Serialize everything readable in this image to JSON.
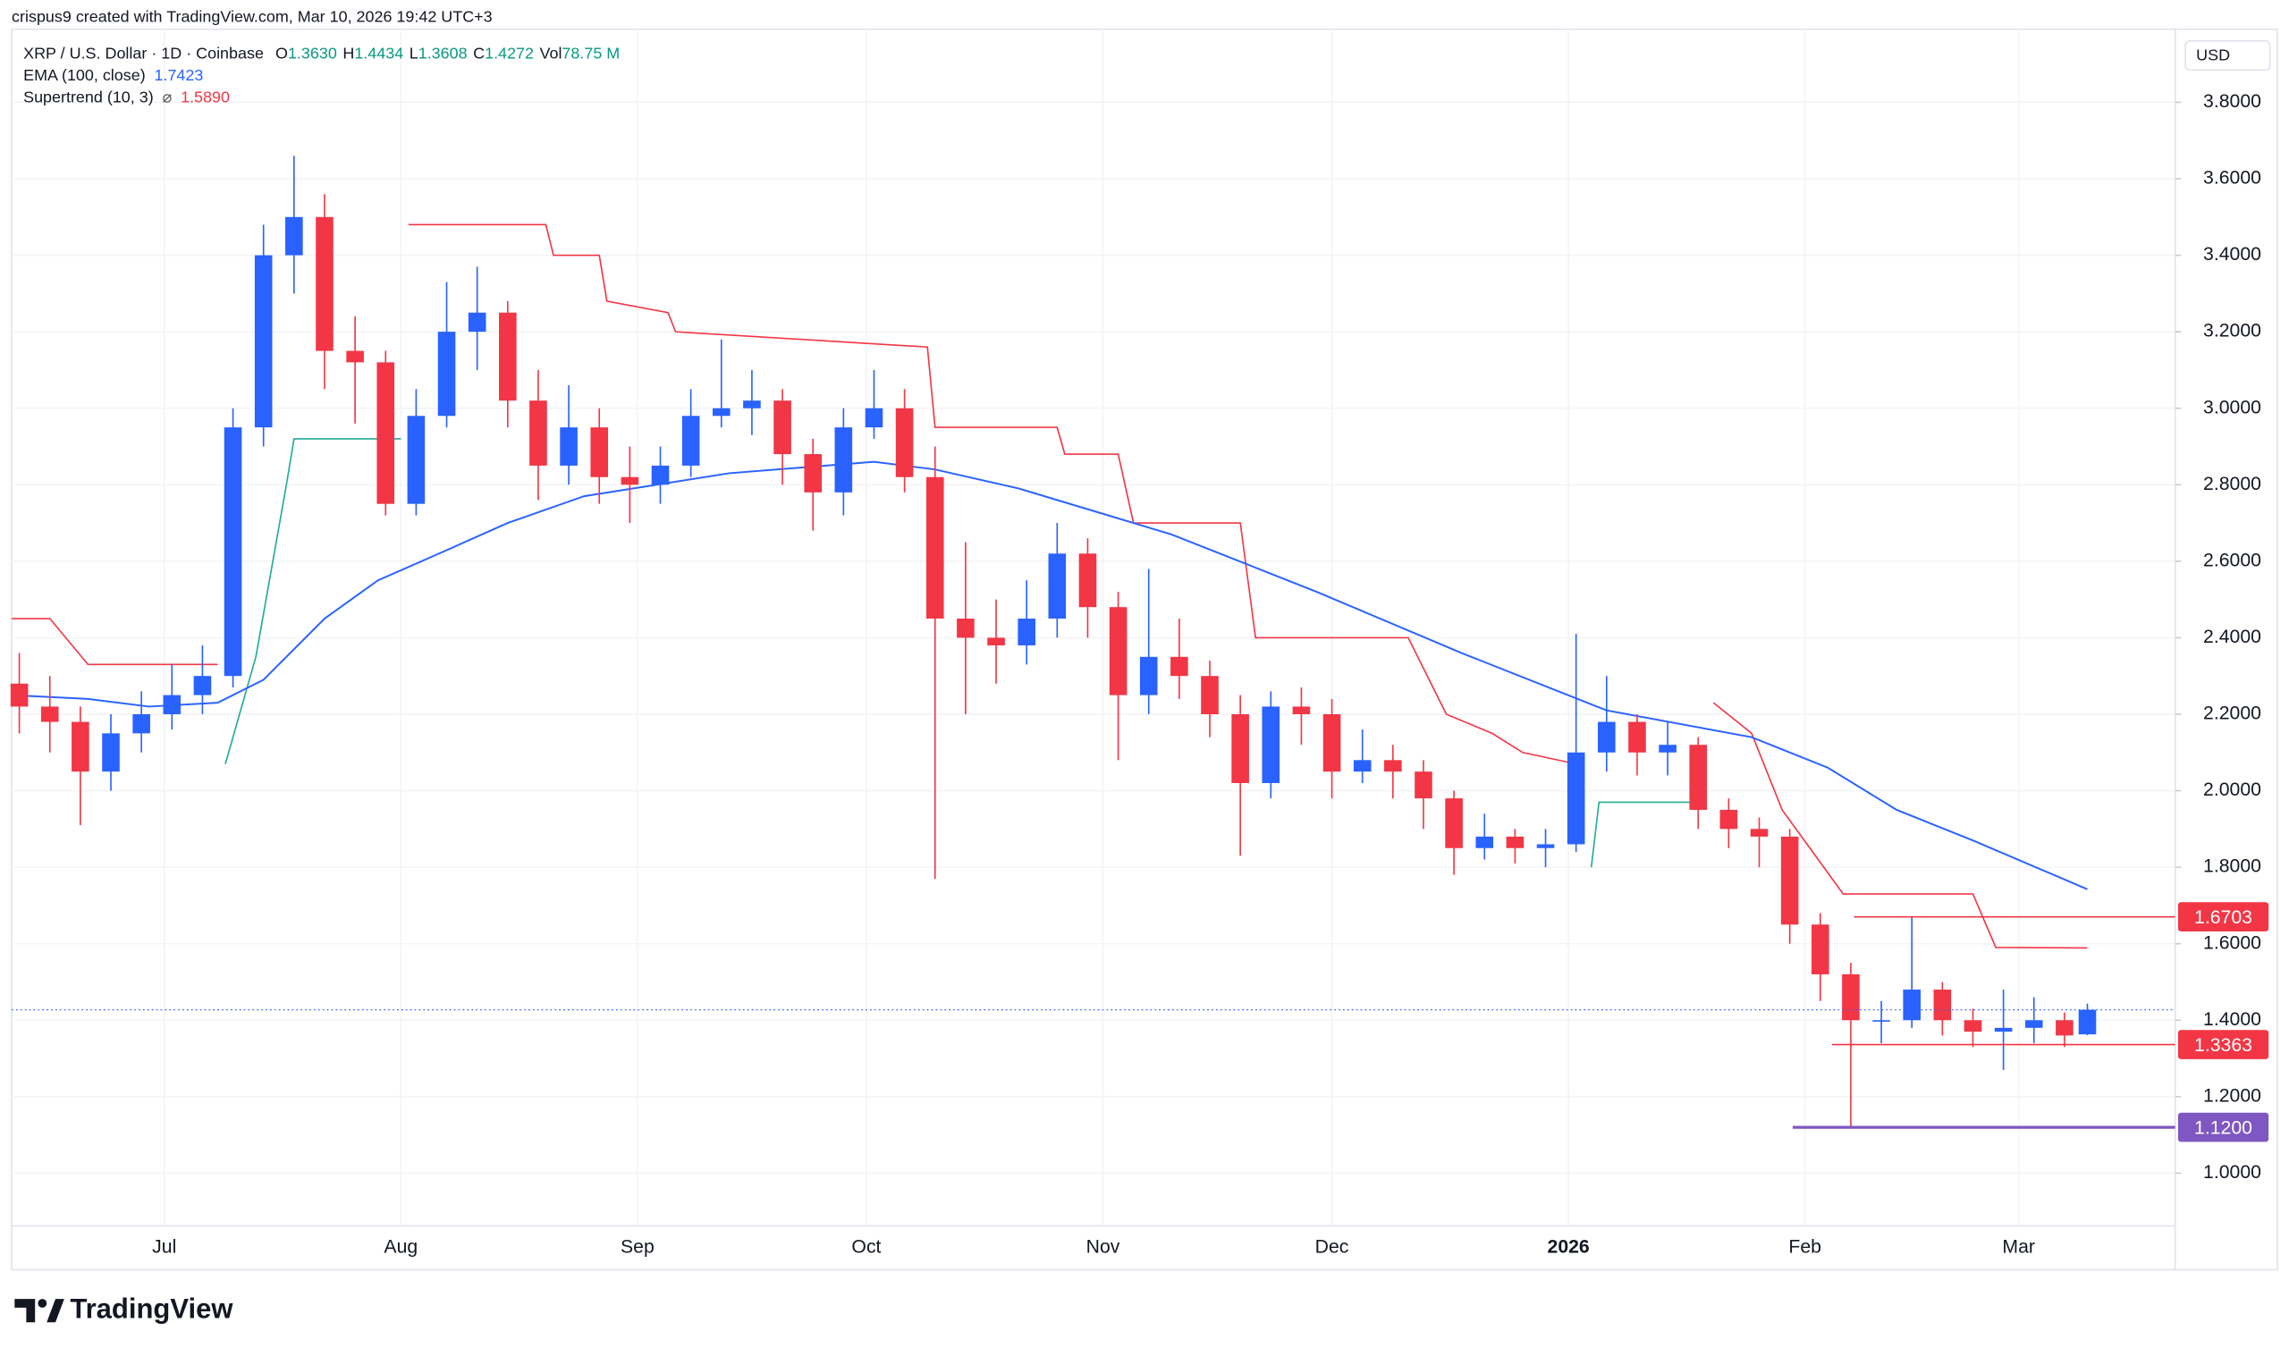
{
  "header": {
    "attribution": "crispus9 created with TradingView.com, Mar 10, 2026 19:42 UTC+3"
  },
  "chart_data": {
    "type": "candlestick",
    "title": "XRP / U.S. Dollar · 1D · Coinbase",
    "currency": "USD",
    "legend": {
      "ohlc": [
        {
          "key": "O",
          "value": 1.363,
          "label": "1.3630"
        },
        {
          "key": "H",
          "value": 1.4434,
          "label": "1.4434"
        },
        {
          "key": "L",
          "value": 1.3608,
          "label": "1.3608"
        },
        {
          "key": "C",
          "value": 1.4272,
          "label": "1.4272"
        }
      ],
      "volume": {
        "key": "Vol",
        "value": 78.75,
        "label": "78.75 M"
      }
    },
    "up_color": "#2962ff",
    "down_color": "#f23645",
    "x": [
      1,
      5,
      9,
      13,
      17,
      21,
      25,
      29,
      33,
      37,
      41,
      45,
      49,
      53,
      57,
      61,
      65,
      69,
      73,
      77,
      81,
      85,
      89,
      93,
      97,
      101,
      105,
      109,
      113,
      117,
      121,
      125,
      129,
      133,
      137,
      141,
      145,
      149,
      153,
      157,
      161,
      165,
      169,
      173,
      177,
      181,
      185,
      189,
      193,
      197,
      201,
      205,
      209,
      213,
      217,
      221,
      225,
      229,
      233,
      237,
      241,
      245,
      249,
      253,
      257,
      261,
      265,
      269,
      272
    ],
    "open": [
      2.28,
      2.22,
      2.18,
      2.05,
      2.15,
      2.2,
      2.25,
      2.3,
      2.95,
      3.4,
      3.5,
      3.15,
      3.12,
      2.75,
      2.98,
      3.2,
      3.25,
      3.02,
      2.85,
      2.95,
      2.82,
      2.8,
      2.85,
      2.98,
      3.0,
      3.02,
      2.88,
      2.78,
      2.95,
      3.0,
      2.82,
      2.45,
      2.4,
      2.38,
      2.45,
      2.62,
      2.48,
      2.25,
      2.35,
      2.3,
      2.2,
      2.02,
      2.22,
      2.2,
      2.05,
      2.08,
      2.05,
      1.98,
      1.85,
      1.88,
      1.85,
      1.86,
      2.1,
      2.18,
      2.1,
      2.12,
      1.95,
      1.9,
      1.88,
      1.65,
      1.52,
      1.4,
      1.4,
      1.48,
      1.4,
      1.37,
      1.38,
      1.4,
      1.363
    ],
    "high": [
      2.36,
      2.3,
      2.22,
      2.2,
      2.26,
      2.33,
      2.38,
      3.0,
      3.48,
      3.66,
      3.56,
      3.24,
      3.15,
      3.05,
      3.33,
      3.37,
      3.28,
      3.1,
      3.06,
      3.0,
      2.9,
      2.9,
      3.05,
      3.18,
      3.1,
      3.05,
      2.92,
      3.0,
      3.1,
      3.05,
      2.9,
      2.65,
      2.5,
      2.55,
      2.7,
      2.66,
      2.52,
      2.58,
      2.45,
      2.34,
      2.25,
      2.26,
      2.27,
      2.24,
      2.16,
      2.12,
      2.08,
      2.0,
      1.94,
      1.9,
      1.9,
      2.41,
      2.3,
      2.2,
      2.18,
      2.14,
      1.98,
      1.93,
      1.9,
      1.68,
      1.55,
      1.45,
      1.67,
      1.5,
      1.43,
      1.48,
      1.46,
      1.42,
      1.4434
    ],
    "low": [
      2.15,
      2.1,
      1.91,
      2.0,
      2.1,
      2.16,
      2.2,
      2.27,
      2.9,
      3.3,
      3.05,
      2.96,
      2.72,
      2.72,
      2.95,
      3.1,
      2.95,
      2.76,
      2.8,
      2.75,
      2.7,
      2.75,
      2.82,
      2.95,
      2.93,
      2.8,
      2.68,
      2.72,
      2.92,
      2.78,
      1.77,
      2.2,
      2.28,
      2.33,
      2.4,
      2.4,
      2.08,
      2.2,
      2.24,
      2.14,
      1.83,
      1.98,
      2.12,
      1.98,
      2.02,
      1.98,
      1.9,
      1.78,
      1.82,
      1.81,
      1.8,
      1.84,
      2.05,
      2.04,
      2.04,
      1.9,
      1.85,
      1.8,
      1.6,
      1.45,
      1.12,
      1.34,
      1.38,
      1.36,
      1.33,
      1.27,
      1.34,
      1.33,
      1.3608
    ],
    "close": [
      2.22,
      2.18,
      2.05,
      2.15,
      2.2,
      2.25,
      2.3,
      2.95,
      3.4,
      3.5,
      3.15,
      3.12,
      2.75,
      2.98,
      3.2,
      3.25,
      3.02,
      2.85,
      2.95,
      2.82,
      2.8,
      2.85,
      2.98,
      3.0,
      3.02,
      2.88,
      2.78,
      2.95,
      3.0,
      2.82,
      2.45,
      2.4,
      2.38,
      2.45,
      2.62,
      2.48,
      2.25,
      2.35,
      2.3,
      2.2,
      2.02,
      2.22,
      2.2,
      2.05,
      2.08,
      2.05,
      1.98,
      1.85,
      1.88,
      1.85,
      1.86,
      2.1,
      2.18,
      2.1,
      2.12,
      1.95,
      1.9,
      1.88,
      1.65,
      1.52,
      1.4,
      1.4,
      1.48,
      1.4,
      1.37,
      1.38,
      1.4,
      1.36,
      1.4272
    ],
    "xlim": [
      0,
      283.5
    ],
    "xticks": [
      {
        "value": 20,
        "label": "Jul"
      },
      {
        "value": 51,
        "label": "Aug"
      },
      {
        "value": 82,
        "label": "Sep"
      },
      {
        "value": 112,
        "label": "Oct"
      },
      {
        "value": 143,
        "label": "Nov"
      },
      {
        "value": 173,
        "label": "Dec"
      },
      {
        "value": 204,
        "label": "2026"
      },
      {
        "value": 235,
        "label": "Feb"
      },
      {
        "value": 263,
        "label": "Mar"
      }
    ],
    "ylim": [
      0.862,
      3.991
    ],
    "yticks": [
      {
        "value": 1.0,
        "label": "1.0000"
      },
      {
        "value": 1.2,
        "label": "1.2000"
      },
      {
        "value": 1.4,
        "label": "1.4000"
      },
      {
        "value": 1.6,
        "label": "1.6000"
      },
      {
        "value": 1.8,
        "label": "1.8000"
      },
      {
        "value": 2.0,
        "label": "2.0000"
      },
      {
        "value": 2.2,
        "label": "2.2000"
      },
      {
        "value": 2.4,
        "label": "2.4000"
      },
      {
        "value": 2.6,
        "label": "2.6000"
      },
      {
        "value": 2.8,
        "label": "2.8000"
      },
      {
        "value": 3.0,
        "label": "3.0000"
      },
      {
        "value": 3.2,
        "label": "3.2000"
      },
      {
        "value": 3.4,
        "label": "3.4000"
      },
      {
        "value": 3.6,
        "label": "3.6000"
      },
      {
        "value": 3.8,
        "label": "3.8000"
      }
    ],
    "overlays": {
      "ema": {
        "label": "EMA (100, close)",
        "value": 1.7423,
        "value_label": "1.7423",
        "color": "#2962ff",
        "x": [
          0,
          10,
          18,
          27,
          33,
          41,
          48,
          56,
          65,
          75,
          94,
          113,
          121,
          132,
          152,
          171,
          190,
          209,
          228,
          238,
          247,
          257,
          272
        ],
        "values": [
          2.25,
          2.24,
          2.22,
          2.23,
          2.29,
          2.45,
          2.55,
          2.62,
          2.7,
          2.77,
          2.83,
          2.86,
          2.84,
          2.79,
          2.67,
          2.52,
          2.36,
          2.21,
          2.14,
          2.06,
          1.95,
          1.87,
          1.7423
        ]
      },
      "supertrend": {
        "label": "Supertrend (10, 3)",
        "icon": "⌀",
        "value": 1.589,
        "value_label": "1.5890",
        "segments": [
          {
            "trend": "down",
            "color": "#f23645",
            "x": [
              0,
              5,
              10,
              27
            ],
            "values": [
              2.45,
              2.45,
              2.33,
              2.33
            ]
          },
          {
            "trend": "up",
            "color": "#22ab94",
            "x": [
              28,
              32,
              36,
              37,
              51
            ],
            "values": [
              2.07,
              2.35,
              2.8,
              2.92,
              2.92
            ]
          },
          {
            "trend": "down",
            "color": "#f23645",
            "x": [
              52,
              70,
              71,
              77,
              78,
              86,
              87,
              120,
              121,
              137,
              138,
              145,
              147,
              161,
              163,
              183,
              188,
              194,
              198,
              205
            ],
            "values": [
              3.48,
              3.48,
              3.4,
              3.4,
              3.28,
              3.25,
              3.2,
              3.16,
              2.95,
              2.95,
              2.88,
              2.88,
              2.7,
              2.7,
              2.4,
              2.4,
              2.2,
              2.15,
              2.1,
              2.07
            ]
          },
          {
            "trend": "up",
            "color": "#22ab94",
            "x": [
              207,
              208,
              222
            ],
            "values": [
              1.8,
              1.97,
              1.97
            ]
          },
          {
            "trend": "down",
            "color": "#f23645",
            "x": [
              223,
              228,
              232,
              240,
              257,
              260,
              272
            ],
            "values": [
              2.23,
              2.15,
              1.95,
              1.73,
              1.73,
              1.59,
              1.589
            ]
          }
        ]
      }
    },
    "price_lines": [
      {
        "value": 1.6703,
        "label": "1.6703",
        "color": "#f23645"
      },
      {
        "value": 1.3363,
        "label": "1.3363",
        "color": "#f23645"
      },
      {
        "value": 1.12,
        "label": "1.1200",
        "color": "#7e57c2"
      }
    ]
  },
  "footer": {
    "brand": "TradingView"
  }
}
